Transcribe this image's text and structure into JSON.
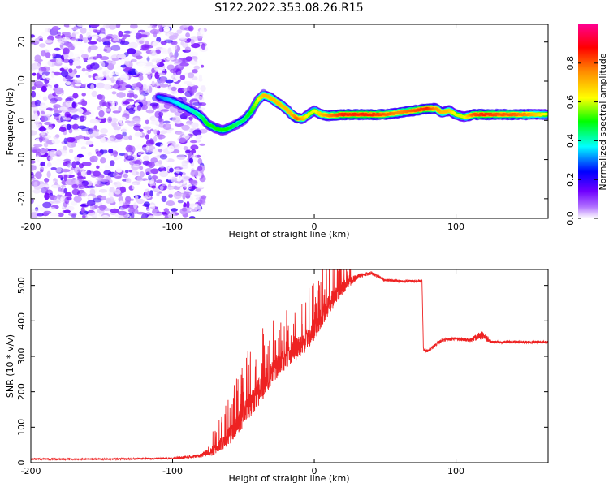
{
  "title": "S122.2022.353.08.26.R15",
  "chart_data": [
    {
      "type": "heatmap",
      "xlabel": "Height of straight line (km)",
      "ylabel": "Frequency (Hz)",
      "xlim": [
        -200,
        165
      ],
      "ylim": [
        -25,
        24.5
      ],
      "xticks": [
        -200,
        -100,
        0,
        100
      ],
      "yticks": [
        -20,
        -10,
        0,
        10,
        20
      ],
      "colorbar": {
        "label": "Normalized spectral amplitude",
        "range": [
          0,
          1
        ],
        "ticks": [
          0.0,
          0.2,
          0.4,
          0.6,
          0.8
        ],
        "tick_labels": [
          "0.0",
          "0.2",
          "0.4",
          "0.6",
          "0.8"
        ],
        "colors": [
          "#ffffff",
          "#7c00ff",
          "#0000ff",
          "#00ffff",
          "#00ff00",
          "#ffff00",
          "#ff8800",
          "#ff0000",
          "#ff00aa"
        ]
      },
      "noise_region_x": [
        -200,
        -78
      ],
      "ridge": {
        "x": [
          -110,
          -100,
          -92,
          -86,
          -80,
          -75,
          -70,
          -65,
          -60,
          -55,
          -50,
          -45,
          -40,
          -36,
          -32,
          -28,
          -24,
          -20,
          -16,
          -12,
          -8,
          -4,
          0,
          5,
          10,
          20,
          30,
          40,
          50,
          60,
          70,
          80,
          86,
          90,
          95,
          100,
          106,
          112,
          120,
          130,
          140,
          150,
          165
        ],
        "y": [
          6,
          5,
          3.5,
          2.5,
          1,
          -1,
          -2,
          -2.5,
          -2,
          -1,
          0,
          2,
          5,
          6.5,
          6,
          5,
          4,
          3,
          1.5,
          0.5,
          0.5,
          1.5,
          2.5,
          1.5,
          1.2,
          1.5,
          1.5,
          1.5,
          1.5,
          2,
          2.5,
          3,
          3,
          2,
          2.5,
          1.5,
          0.8,
          1.5,
          1.5,
          1.5,
          1.5,
          1.5,
          1.5
        ],
        "amplitude": [
          0.3,
          0.35,
          0.4,
          0.4,
          0.45,
          0.5,
          0.5,
          0.5,
          0.5,
          0.45,
          0.45,
          0.5,
          0.6,
          0.7,
          0.7,
          0.7,
          0.7,
          0.7,
          0.7,
          0.8,
          0.7,
          0.6,
          0.6,
          0.7,
          0.75,
          0.85,
          0.85,
          0.85,
          0.8,
          0.75,
          0.8,
          0.85,
          0.75,
          0.7,
          0.7,
          0.6,
          0.6,
          0.8,
          0.85,
          0.8,
          0.8,
          0.75,
          0.6
        ]
      }
    },
    {
      "type": "line",
      "xlabel": "Height of straight line (km)",
      "ylabel": "SNR (10 * v/v)",
      "xlim": [
        -200,
        165
      ],
      "ylim": [
        0,
        545
      ],
      "xticks": [
        -200,
        -100,
        0,
        100
      ],
      "yticks": [
        0,
        100,
        200,
        300,
        400,
        500
      ],
      "line_color": "#ee2222",
      "series": [
        {
          "x": [
            -200,
            -150,
            -100,
            -80,
            -70,
            -60,
            -50,
            -40,
            -30,
            -20,
            -10,
            0,
            10,
            20,
            30,
            40,
            50,
            60,
            70,
            76,
            77,
            80,
            90,
            100,
            110,
            118,
            125,
            140,
            165
          ],
          "y": [
            10,
            10,
            12,
            20,
            40,
            80,
            140,
            200,
            260,
            300,
            330,
            380,
            450,
            500,
            525,
            535,
            515,
            512,
            512,
            512,
            320,
            315,
            345,
            350,
            345,
            360,
            340,
            340,
            340
          ],
          "noise_amplitude": [
            4,
            4,
            5,
            10,
            30,
            50,
            70,
            80,
            70,
            60,
            60,
            60,
            60,
            40,
            15,
            10,
            8,
            8,
            8,
            8,
            8,
            10,
            10,
            10,
            10,
            25,
            8,
            8,
            8
          ]
        }
      ]
    }
  ]
}
